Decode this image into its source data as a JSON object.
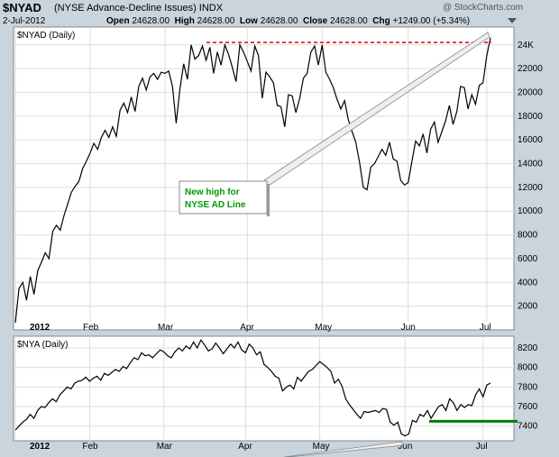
{
  "header": {
    "symbol": "$NYAD",
    "description": "(NYSE Advance-Decline Issues)",
    "exchange": "INDX",
    "date": "2-Jul-2012",
    "open_label": "Open",
    "open": "24628.00",
    "high_label": "High",
    "high": "24628.00",
    "low_label": "Low",
    "low": "24628.00",
    "close_label": "Close",
    "close": "24628.00",
    "chg_label": "Chg",
    "chg": "+1249.00 (+5.34%)",
    "watermark": "@ StockCharts.com",
    "arrow_icon": "triangle-down-icon"
  },
  "chart_data": [
    {
      "type": "line",
      "panel_label": "$NYAD (Daily)",
      "ylim": [
        0,
        25500
      ],
      "y_ticks": [
        2000,
        4000,
        6000,
        8000,
        10000,
        12000,
        14000,
        16000,
        18000,
        20000,
        22000,
        24000
      ],
      "y_tick_labels": [
        "2000",
        "4000",
        "6000",
        "8000",
        "10000",
        "12000",
        "14000",
        "16000",
        "18000",
        "20000",
        "22000",
        "24K"
      ],
      "x_month_labels": [
        "2012",
        "Feb",
        "Mar",
        "Apr",
        "May",
        "Jun",
        "Jul"
      ],
      "x_month_index": [
        0,
        20,
        40,
        62,
        82,
        105,
        126
      ],
      "grid": true,
      "color": "#000000",
      "values": [
        600,
        3500,
        4000,
        2500,
        4500,
        3000,
        5000,
        5700,
        6500,
        6000,
        8300,
        8800,
        8400,
        9600,
        10600,
        11600,
        12100,
        12500,
        13600,
        14200,
        14900,
        15700,
        15200,
        16200,
        16800,
        16200,
        17100,
        16300,
        18500,
        19100,
        18300,
        19600,
        18400,
        20500,
        21200,
        20200,
        21300,
        21600,
        21100,
        21700,
        21600,
        21800,
        20500,
        17400,
        20300,
        22400,
        21100,
        24000,
        22800,
        23100,
        23900,
        22700,
        23800,
        21600,
        23400,
        22300,
        24000,
        23200,
        22100,
        20900,
        24000,
        23400,
        22600,
        21800,
        23900,
        23100,
        19500,
        21700,
        21300,
        20800,
        18900,
        18800,
        17100,
        19800,
        19700,
        18300,
        19500,
        21200,
        21600,
        23400,
        23900,
        22300,
        24000,
        21700,
        21100,
        20400,
        19400,
        18600,
        19300,
        17700,
        16700,
        15800,
        14100,
        12000,
        11800,
        13700,
        14000,
        14600,
        15200,
        14700,
        15800,
        14400,
        14200,
        12600,
        12200,
        12400,
        14200,
        15900,
        15500,
        16500,
        14900,
        16900,
        17500,
        15800,
        16700,
        17600,
        18900,
        17300,
        18400,
        20500,
        20400,
        18600,
        19800,
        19000,
        20600,
        20800,
        23100,
        24600
      ],
      "reference_line": {
        "value": 24200,
        "color": "#e00000",
        "style": "dashed"
      },
      "annotation": {
        "line1": "New high for",
        "line2": "NYSE AD Line"
      }
    },
    {
      "type": "line",
      "panel_label": "$NYA (Daily)",
      "ylim": [
        7250,
        8320
      ],
      "y_ticks": [
        7400,
        7600,
        7800,
        8000,
        8200
      ],
      "y_tick_labels": [
        "7400",
        "7600",
        "7800",
        "8000",
        "8200"
      ],
      "x_month_labels": [
        "2012",
        "Feb",
        "Mar",
        "Apr",
        "May",
        "Jun",
        "Jul"
      ],
      "x_month_index": [
        0,
        20,
        40,
        62,
        82,
        105,
        126
      ],
      "grid": true,
      "color": "#000000",
      "values": [
        7360,
        7400,
        7440,
        7470,
        7520,
        7480,
        7560,
        7600,
        7590,
        7640,
        7680,
        7650,
        7720,
        7760,
        7800,
        7780,
        7840,
        7860,
        7870,
        7900,
        7860,
        7890,
        7910,
        7870,
        7940,
        7920,
        7950,
        7980,
        7960,
        8010,
        7990,
        8050,
        8100,
        8080,
        8150,
        8120,
        8130,
        8100,
        8140,
        8180,
        8160,
        8120,
        8100,
        8160,
        8200,
        8170,
        8220,
        8190,
        8260,
        8200,
        8280,
        8230,
        8170,
        8190,
        8250,
        8200,
        8140,
        8190,
        8240,
        8200,
        8260,
        8180,
        8150,
        8240,
        8200,
        8130,
        8160,
        8030,
        8000,
        7960,
        7910,
        7890,
        7760,
        7800,
        7820,
        7780,
        7900,
        7860,
        7910,
        7960,
        7980,
        8020,
        8060,
        8030,
        8000,
        7960,
        7840,
        7880,
        7810,
        7680,
        7620,
        7570,
        7520,
        7480,
        7550,
        7540,
        7550,
        7560,
        7540,
        7580,
        7570,
        7440,
        7410,
        7440,
        7320,
        7300,
        7320,
        7460,
        7440,
        7520,
        7500,
        7560,
        7480,
        7540,
        7600,
        7620,
        7560,
        7680,
        7640,
        7560,
        7620,
        7590,
        7620,
        7610,
        7720,
        7780,
        7700,
        7820,
        7840
      ],
      "support_line": {
        "value": 7450,
        "color": "#008000"
      }
    }
  ]
}
